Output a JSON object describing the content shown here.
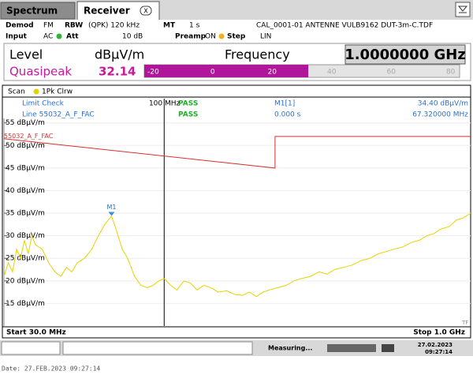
{
  "tabs": [
    "Spectrum",
    "Receiver"
  ],
  "settings": {
    "row1": [
      "Demod",
      "FM",
      "RBW",
      "(QPK) 120 kHz",
      "MT",
      "1 s",
      "CAL_0001-01 ANTENNE VULB9162 DUT-3m-C.TDF"
    ],
    "row2": [
      "Input",
      "AC",
      "Att",
      "10 dB",
      "Preamp",
      "ON",
      "Step",
      "LIN"
    ]
  },
  "level_panel": {
    "level": "Level",
    "unit": "dBµV/m",
    "frequency_label": "Frequency",
    "frequency": "1.0000000 GHz",
    "detector": "Quasipeak",
    "value": 32.14,
    "bar_lim": [
      -23,
      83
    ],
    "bar_ticks": [
      -20,
      0,
      20,
      40,
      60,
      80
    ]
  },
  "chart_data": {
    "type": "line",
    "scan_label": "Scan",
    "log_x": true,
    "xlim": [
      30,
      1000
    ],
    "ylim": [
      10,
      56
    ],
    "yticks": [
      {
        "value": 55,
        "label": "55 dBµV/m"
      },
      {
        "value": 50,
        "label": "50 dBµV/m"
      },
      {
        "value": 45,
        "label": "45 dBµV/m"
      },
      {
        "value": 40,
        "label": "40 dBµV/m"
      },
      {
        "value": 35,
        "label": "35 dBµV/m"
      },
      {
        "value": 30,
        "label": "30 dBµV/m"
      },
      {
        "value": 25,
        "label": "25 dBµV/m"
      },
      {
        "value": 20,
        "label": "20 dBµV/m"
      },
      {
        "value": 15,
        "label": "15 dBµV/m"
      }
    ],
    "series": [
      {
        "name": "1Pk Clrw",
        "color": "#e6d200",
        "x": [
          30,
          31,
          32,
          33,
          34,
          35,
          36,
          37,
          38,
          40,
          42,
          44,
          46,
          48,
          50,
          52,
          55,
          58,
          61,
          64,
          67.32,
          70,
          73,
          76,
          80,
          84,
          88,
          92,
          96,
          100,
          105,
          110,
          116,
          122,
          128,
          135,
          142,
          150,
          160,
          170,
          180,
          190,
          200,
          210,
          220,
          235,
          250,
          265,
          280,
          300,
          320,
          340,
          360,
          385,
          410,
          440,
          470,
          500,
          530,
          560,
          600,
          640,
          680,
          720,
          760,
          800,
          850,
          900,
          950,
          1000
        ],
        "values": [
          21,
          24,
          22,
          27,
          25,
          29,
          26,
          30,
          28,
          27,
          24,
          22,
          21,
          23,
          22,
          24,
          25,
          27,
          30,
          32.5,
          34.4,
          31,
          27,
          25,
          21,
          19,
          18.5,
          19,
          20,
          20.5,
          19,
          18,
          20,
          19.5,
          18,
          19,
          18.5,
          17.5,
          17.8,
          17,
          16.8,
          17.5,
          16.5,
          17.5,
          18,
          18.5,
          19,
          20,
          20.5,
          21,
          22,
          21.5,
          22.5,
          23,
          23.5,
          24.5,
          25,
          26,
          26.5,
          27,
          27.5,
          28.5,
          29,
          30,
          30.5,
          31.5,
          32,
          33.5,
          34,
          35
        ]
      },
      {
        "name": "55032_A_F_FAC",
        "color": "#d83030",
        "x": [
          30,
          230,
          230,
          1000
        ],
        "values": [
          51.5,
          45,
          52,
          52
        ]
      }
    ],
    "marker": {
      "name": "M1",
      "x": 67.32,
      "y": 34.4
    },
    "display_line": {
      "value": 100,
      "label": "100 MHz"
    },
    "info": [
      [
        "Limit Check",
        "PASS"
      ],
      [
        "Line 55032_A_F_FAC",
        "PASS"
      ]
    ],
    "marker_info": [
      "M1[1]",
      "34.40 dBµV/m",
      "0.000 s",
      "67.320000 MHz"
    ],
    "start": "Start 30.0 MHz",
    "stop": "Stop 1.0 GHz",
    "tf": "TF"
  },
  "status": {
    "text": "Measuring...",
    "date": "27.02.2023",
    "time": "09:27:14"
  },
  "footer": "Date: 27.FEB.2023  09:27:14"
}
